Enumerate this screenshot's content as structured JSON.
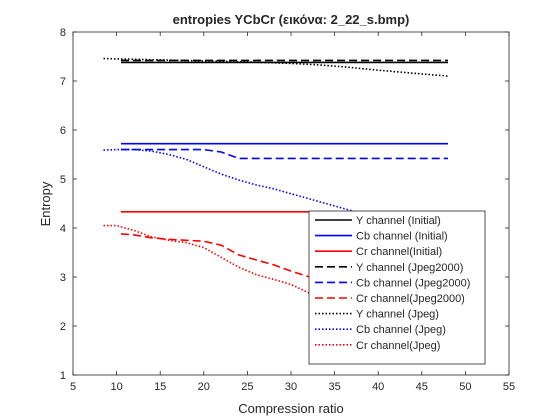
{
  "chart_data": {
    "type": "line",
    "title": "entropies YCbCr (εικόνα: 2_22_s.bmp)",
    "xlabel": "Compression ratio",
    "ylabel": "Entropy",
    "xlim": [
      5,
      55
    ],
    "ylim": [
      1,
      8
    ],
    "xticks": [
      "5",
      "10",
      "15",
      "20",
      "25",
      "30",
      "35",
      "40",
      "45",
      "50",
      "55"
    ],
    "yticks": [
      "1",
      "2",
      "3",
      "4",
      "5",
      "6",
      "7",
      "8"
    ],
    "grid": false,
    "legend_position": "bottom-right",
    "colors": {
      "Y": "#000000",
      "Cb": "#0000ff",
      "Cr": "#ff0000"
    },
    "series": [
      {
        "name": "Y channel (Initial)",
        "color": "#000000",
        "style": "solid",
        "x": [
          10.5,
          48
        ],
        "y": [
          7.38,
          7.38
        ]
      },
      {
        "name": "Cb channel (Initial)",
        "color": "#0000ff",
        "style": "solid",
        "x": [
          10.5,
          48
        ],
        "y": [
          5.72,
          5.72
        ]
      },
      {
        "name": "Cr channel(Initial)",
        "color": "#ff0000",
        "style": "solid",
        "x": [
          10.5,
          48
        ],
        "y": [
          4.33,
          4.33
        ]
      },
      {
        "name": "Y channel (Jpeg2000)",
        "color": "#000000",
        "style": "dashed",
        "x": [
          10.5,
          13,
          16,
          20,
          24,
          28,
          32,
          36,
          40,
          44,
          48
        ],
        "y": [
          7.42,
          7.42,
          7.42,
          7.42,
          7.42,
          7.42,
          7.42,
          7.42,
          7.42,
          7.42,
          7.42
        ]
      },
      {
        "name": "Cb channel (Jpeg2000)",
        "color": "#0000ff",
        "style": "dashed",
        "x": [
          10.5,
          13,
          16,
          18,
          20,
          22,
          24,
          26,
          30,
          34,
          38,
          42,
          48
        ],
        "y": [
          5.6,
          5.6,
          5.6,
          5.6,
          5.6,
          5.55,
          5.42,
          5.42,
          5.42,
          5.42,
          5.42,
          5.42,
          5.42
        ]
      },
      {
        "name": "Cr channel(Jpeg2000)",
        "color": "#ff0000",
        "style": "dashed",
        "x": [
          10.5,
          12,
          14,
          16,
          18,
          20,
          22,
          24,
          26,
          28,
          30,
          33,
          36,
          40,
          44,
          48
        ],
        "y": [
          3.88,
          3.86,
          3.8,
          3.77,
          3.75,
          3.73,
          3.65,
          3.45,
          3.35,
          3.25,
          3.12,
          2.95,
          2.78,
          2.55,
          2.4,
          2.28
        ]
      },
      {
        "name": "Y channel (Jpeg)",
        "color": "#000000",
        "style": "dotted",
        "x": [
          8.5,
          10,
          15,
          20,
          25,
          30,
          33,
          36,
          40,
          44,
          48
        ],
        "y": [
          7.46,
          7.45,
          7.43,
          7.41,
          7.39,
          7.36,
          7.33,
          7.29,
          7.22,
          7.16,
          7.1
        ]
      },
      {
        "name": "Cb channel (Jpeg)",
        "color": "#0000ff",
        "style": "dotted",
        "x": [
          8.5,
          10,
          12,
          14,
          16,
          18,
          20,
          22,
          24,
          26,
          28,
          30,
          32,
          34,
          36,
          38,
          40
        ],
        "y": [
          5.59,
          5.6,
          5.6,
          5.57,
          5.5,
          5.4,
          5.25,
          5.1,
          4.98,
          4.88,
          4.8,
          4.7,
          4.6,
          4.5,
          4.4,
          4.3,
          4.22
        ]
      },
      {
        "name": "Cr channel(Jpeg)",
        "color": "#ff0000",
        "style": "dotted",
        "x": [
          8.5,
          10,
          12,
          14,
          16,
          18,
          20,
          22,
          24,
          26,
          28,
          30,
          32,
          34,
          36
        ],
        "y": [
          4.05,
          4.05,
          3.95,
          3.82,
          3.75,
          3.7,
          3.6,
          3.4,
          3.2,
          3.05,
          2.95,
          2.85,
          2.68,
          2.55,
          2.45
        ]
      }
    ]
  }
}
